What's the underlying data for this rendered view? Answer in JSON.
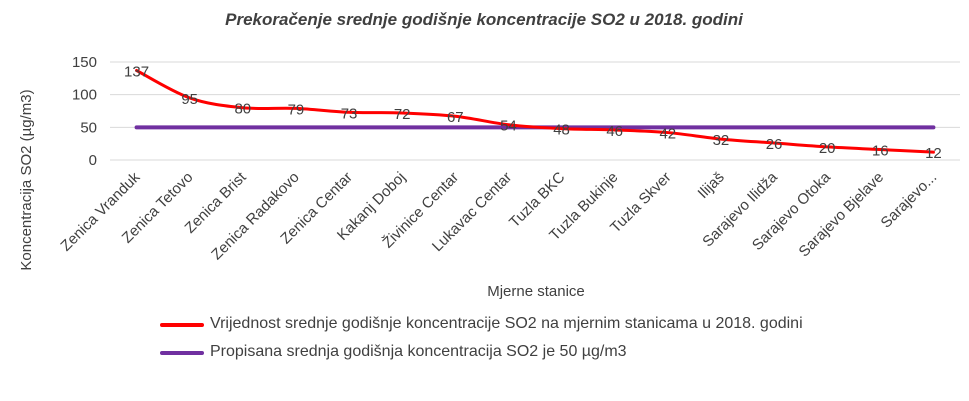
{
  "chart_data": {
    "type": "line",
    "title": "Prekoračenje srednje godišnje koncentracije SO2 u 2018. godini",
    "xlabel": "Mjerne stanice",
    "ylabel": "Koncentracija SO2 (µg/m3)",
    "ylim": [
      0,
      150
    ],
    "yticks": [
      0,
      50,
      100,
      150
    ],
    "categories": [
      "Zenica Vranduk",
      "Zenica Tetovo",
      "Zenica Brist",
      "Zenica Radakovo",
      "Zenica Centar",
      "Kakanj Doboj",
      "Živinice Centar",
      "Lukavac Centar",
      "Tuzla BKC",
      "Tuzla Bukinje",
      "Tuzla Skver",
      "Ilijaš",
      "Sarajevo Ilidža",
      "Sarajevo Otoka",
      "Sarajevo Bjelave",
      "Sarajevo..."
    ],
    "series": [
      {
        "name": "Vrijednost srednje godišnje koncentracije SO2 na mjernim stanicama u 2018. godini",
        "color": "#ff0000",
        "values": [
          137,
          95,
          80,
          79,
          73,
          72,
          67,
          54,
          48,
          46,
          42,
          32,
          26,
          20,
          16,
          12
        ],
        "data_labels": true
      },
      {
        "name": "Propisana srednja godišnja koncentracija SO2 je 50 µg/m3",
        "color": "#7030a0",
        "values": [
          50,
          50,
          50,
          50,
          50,
          50,
          50,
          50,
          50,
          50,
          50,
          50,
          50,
          50,
          50,
          50
        ],
        "data_labels": false
      }
    ],
    "grid": true,
    "legend_position": "bottom"
  }
}
